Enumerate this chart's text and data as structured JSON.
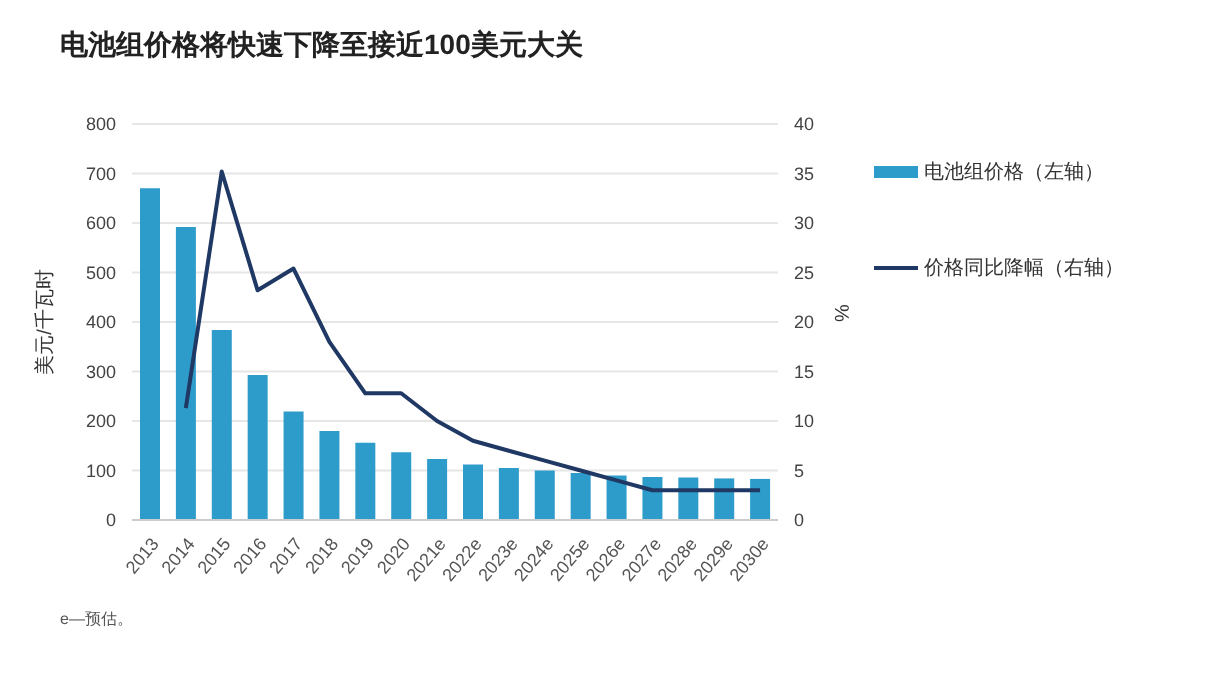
{
  "chart_data": {
    "type": "bar",
    "title": "电池组价格将快速下降至接近100美元大关",
    "categories": [
      "2013",
      "2014",
      "2015",
      "2016",
      "2017",
      "2018",
      "2019",
      "2020",
      "2021e",
      "2022e",
      "2023e",
      "2024e",
      "2025e",
      "2026e",
      "2027e",
      "2028e",
      "2029e",
      "2030e"
    ],
    "series": [
      {
        "name": "电池组价格（左轴）",
        "color": "#2e9cca",
        "values": [
          670,
          592,
          384,
          293,
          219,
          180,
          156,
          137,
          123,
          112,
          105,
          100,
          95,
          90,
          87,
          86,
          84,
          83
        ]
      },
      {
        "name": "价格同比降幅（右轴）",
        "type": "line",
        "axis": "y2",
        "color": "#1f3864",
        "values": [
          null,
          11.3,
          35.2,
          23.2,
          25.4,
          18,
          12.8,
          12.8,
          10,
          8,
          7,
          6,
          5,
          4,
          3,
          3,
          3,
          3
        ]
      }
    ],
    "ylabel": "美元/千瓦时",
    "y2label": "%",
    "ylim": [
      0,
      800
    ],
    "yticks": [
      0,
      100,
      200,
      300,
      400,
      500,
      600,
      700,
      800
    ],
    "y2lim": [
      0,
      40
    ],
    "y2ticks": [
      0,
      5,
      10,
      15,
      20,
      25,
      30,
      35,
      40
    ],
    "grid": "y",
    "legend": "right",
    "marker": "none",
    "annotations": [
      "e—预估。"
    ]
  }
}
